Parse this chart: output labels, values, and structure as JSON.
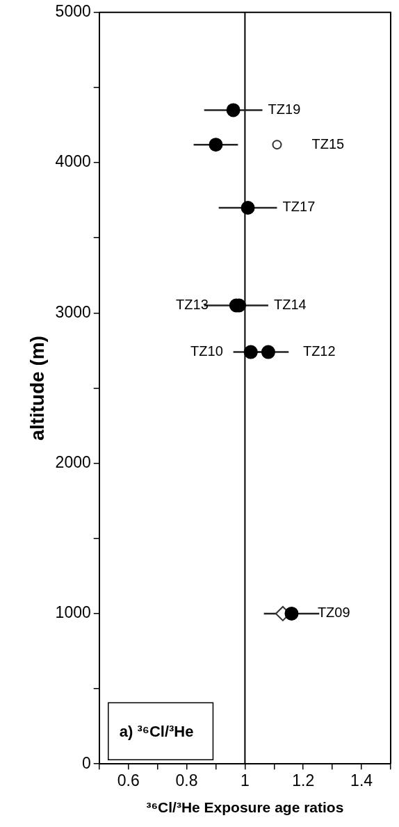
{
  "chart_data": {
    "type": "scatter",
    "xlabel": "³⁶Cl/³He Exposure age ratios",
    "ylabel": "altitude (m)",
    "xlim": [
      0.5,
      1.5
    ],
    "ylim": [
      0,
      5000
    ],
    "xticks": [
      {
        "value": 0.5,
        "label": null
      },
      0.6,
      {
        "value": 0.7,
        "label": null
      },
      0.8,
      {
        "value": 0.9,
        "label": null
      },
      1,
      {
        "value": 1.1,
        "label": null
      },
      1.2,
      {
        "value": 1.3,
        "label": null
      },
      1.4,
      {
        "value": 1.5,
        "label": null
      }
    ],
    "yticks": [
      0,
      {
        "value": 500,
        "label": null
      },
      1000,
      {
        "value": 1500,
        "label": null
      },
      2000,
      {
        "value": 2500,
        "label": null
      },
      3000,
      {
        "value": 3500,
        "label": null
      },
      4000,
      {
        "value": 4500,
        "label": null
      },
      5000
    ],
    "grid": false,
    "legend": false,
    "series": [
      {
        "color": "#000000",
        "marker": "circle",
        "x": [
          0.96,
          0.9,
          1.01,
          0.97,
          0.98,
          1.02,
          1.08,
          1.16
        ],
        "values": [
          4350,
          4120,
          3700,
          3050,
          3050,
          2740,
          2740,
          1000
        ],
        "xerrors": [
          0.1,
          0.076,
          0.1,
          [
            0.86,
            1.08
          ],
          null,
          0.06,
          0.07,
          0.095
        ]
      },
      {
        "color": "#ffffff",
        "marker": "circle",
        "x": [
          1.11
        ],
        "values": [
          4120
        ]
      },
      {
        "color": "#ffffff",
        "marker": "diamond",
        "x": [
          1.13
        ],
        "values": [
          1000
        ]
      }
    ],
    "ref_lines": [
      {
        "axis": "x",
        "value": 1,
        "color": "#000000"
      }
    ],
    "annotations": [
      {
        "text": "TZ19",
        "x": 0.96,
        "y": 4350
      },
      {
        "text": "TZ15",
        "x": 1.11,
        "y": 4120
      },
      {
        "text": "TZ17",
        "x": 1.01,
        "y": 3700
      },
      {
        "text": "TZ13",
        "x": 0.97,
        "y": 3050
      },
      {
        "text": "TZ14",
        "x": 0.98,
        "y": 3050
      },
      {
        "text": "TZ10",
        "x": 1.02,
        "y": 2740
      },
      {
        "text": "TZ12",
        "x": 1.08,
        "y": 2740
      },
      {
        "text": "TZ09",
        "x": 1.13,
        "y": 1000
      },
      "a) ³⁶Cl/³He"
    ]
  }
}
